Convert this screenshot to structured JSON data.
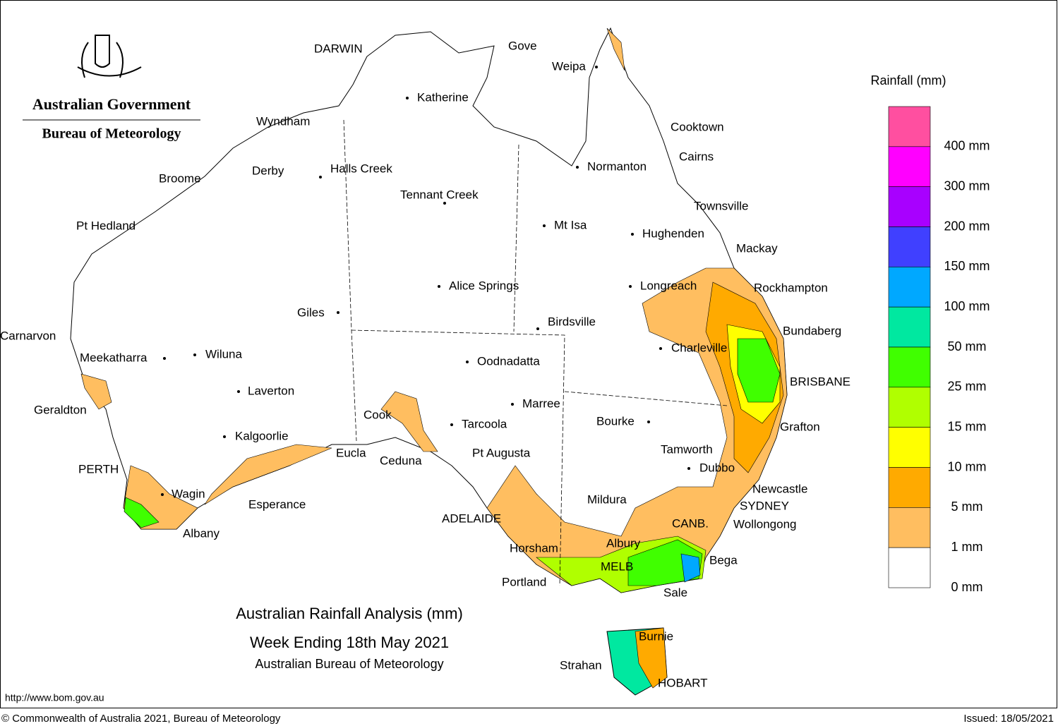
{
  "logo": {
    "line1": "Australian Government",
    "line2": "Bureau of Meteorology"
  },
  "title": "Australian Rainfall Analysis (mm)",
  "subtitle": "Week Ending 18th May 2021",
  "source": "Australian Bureau of Meteorology",
  "legend": {
    "title": "Rainfall (mm)",
    "colors": [
      "#ff4fa0",
      "#ff00ff",
      "#a800ff",
      "#4040ff",
      "#00a8ff",
      "#00e8a0",
      "#40ff00",
      "#b0ff00",
      "#ffff00",
      "#ffaa00",
      "#ffbe60",
      "#ffffff"
    ],
    "labels": [
      "400 mm",
      "300 mm",
      "200 mm",
      "150 mm",
      "100 mm",
      "50 mm",
      "25 mm",
      "15 mm",
      "10 mm",
      "5 mm",
      "1 mm",
      "0 mm"
    ]
  },
  "places": [
    "DARWIN",
    "Gove",
    "Weipa",
    "Katherine",
    "Wyndham",
    "Cooktown",
    "Derby",
    "Halls Creek",
    "Broome",
    "Normanton",
    "Cairns",
    "Tennant Creek",
    "Townsville",
    "Pt Hedland",
    "Mt Isa",
    "Hughenden",
    "Mackay",
    "Alice Springs",
    "Longreach",
    "Rockhampton",
    "Giles",
    "Birdsville",
    "Bundaberg",
    "Carnarvon",
    "Charleville",
    "Meekatharra",
    "Wiluna",
    "Oodnadatta",
    "BRISBANE",
    "Laverton",
    "Marree",
    "Geraldton",
    "Cook",
    "Bourke",
    "Tarcoola",
    "Grafton",
    "Kalgoorlie",
    "Tamworth",
    "Eucla",
    "Pt Augusta",
    "Ceduna",
    "Dubbo",
    "PERTH",
    "Newcastle",
    "Wagin",
    "Mildura",
    "Esperance",
    "SYDNEY",
    "ADELAIDE",
    "CANB.",
    "Wollongong",
    "Albany",
    "Albury",
    "Horsham",
    "Bega",
    "MELB",
    "Portland",
    "Sale",
    "Burnie",
    "Strahan",
    "HOBART"
  ],
  "footer": {
    "url": "http://www.bom.gov.au",
    "copyright": "© Commonwealth of Australia 2021, Bureau of Meteorology",
    "issued": "Issued: 18/05/2021"
  }
}
